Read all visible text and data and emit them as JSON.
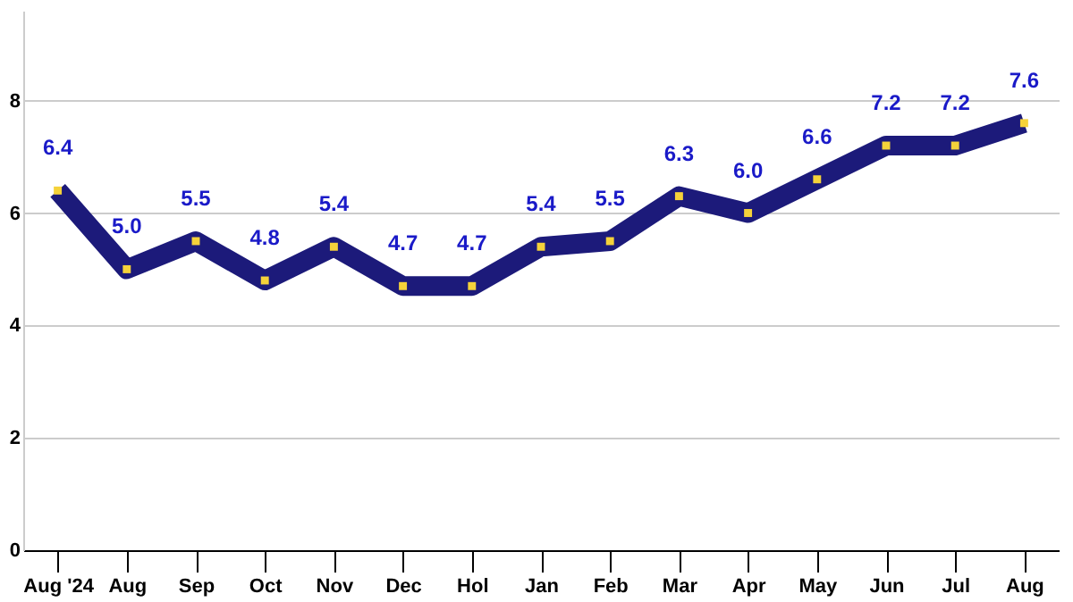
{
  "chart_data": {
    "type": "line",
    "categories": [
      "Aug '24",
      "Aug",
      "Sep",
      "Oct",
      "Nov",
      "Dec",
      "Hol",
      "Jan",
      "Feb",
      "Mar",
      "Apr",
      "May",
      "Jun",
      "Jul",
      "Aug"
    ],
    "series": [
      {
        "color": "#1c1a7a",
        "values": [
          6.4,
          5.0,
          5.5,
          4.8,
          5.4,
          4.7,
          4.7,
          5.4,
          5.5,
          6.3,
          6.0,
          6.6,
          7.2,
          7.2,
          7.6
        ],
        "value_labels": [
          "6.4",
          "5.0",
          "5.5",
          "4.8",
          "5.4",
          "4.7",
          "4.7",
          "5.4",
          "5.5",
          "6.3",
          "6.0",
          "6.6",
          "7.2",
          "7.2",
          "7.6"
        ]
      }
    ],
    "ylim": [
      0,
      9.6
    ],
    "yticks": [
      0,
      2,
      4,
      6,
      8
    ],
    "grid": "y",
    "marker": "square"
  }
}
